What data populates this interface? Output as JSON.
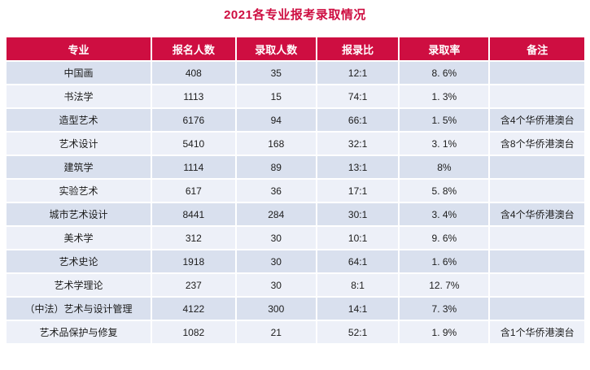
{
  "page": {
    "title": "2021各专业报考录取情况"
  },
  "colors": {
    "accent_red": "#ce0e41",
    "header_bg": "#ce0e41",
    "header_text": "#ffffff",
    "row_bg_odd": "#d9e0ee",
    "row_bg_even": "#edf0f8",
    "body_text": "#1c1c1c",
    "page_bg": "#ffffff"
  },
  "chart_data": {
    "type": "table",
    "title": "2021各专业报考录取情况",
    "columns": [
      {
        "key": "major",
        "label": "专业",
        "width": "25.3%"
      },
      {
        "key": "applicants",
        "label": "报名人数",
        "width": "14.5%"
      },
      {
        "key": "admitted",
        "label": "录取人数",
        "width": "13.9%"
      },
      {
        "key": "ratio",
        "label": "报录比",
        "width": "14.2%"
      },
      {
        "key": "rate",
        "label": "录取率",
        "width": "15.6%"
      },
      {
        "key": "remark",
        "label": "备注",
        "width": "16.5%"
      }
    ],
    "rows": [
      {
        "major": "中国画",
        "applicants": "408",
        "admitted": "35",
        "ratio": "12:1",
        "rate": "8. 6%",
        "remark": ""
      },
      {
        "major": "书法学",
        "applicants": "1113",
        "admitted": "15",
        "ratio": "74:1",
        "rate": "1. 3%",
        "remark": ""
      },
      {
        "major": "造型艺术",
        "applicants": "6176",
        "admitted": "94",
        "ratio": "66:1",
        "rate": "1. 5%",
        "remark": "含4个华侨港澳台"
      },
      {
        "major": "艺术设计",
        "applicants": "5410",
        "admitted": "168",
        "ratio": "32:1",
        "rate": "3. 1%",
        "remark": "含8个华侨港澳台"
      },
      {
        "major": "建筑学",
        "applicants": "1114",
        "admitted": "89",
        "ratio": "13:1",
        "rate": "8%",
        "remark": ""
      },
      {
        "major": "实验艺术",
        "applicants": "617",
        "admitted": "36",
        "ratio": "17:1",
        "rate": "5. 8%",
        "remark": ""
      },
      {
        "major": "城市艺术设计",
        "applicants": "8441",
        "admitted": "284",
        "ratio": "30:1",
        "rate": "3. 4%",
        "remark": "含4个华侨港澳台"
      },
      {
        "major": "美术学",
        "applicants": "312",
        "admitted": "30",
        "ratio": "10:1",
        "rate": "9. 6%",
        "remark": ""
      },
      {
        "major": "艺术史论",
        "applicants": "1918",
        "admitted": "30",
        "ratio": "64:1",
        "rate": "1. 6%",
        "remark": ""
      },
      {
        "major": "艺术学理论",
        "applicants": "237",
        "admitted": "30",
        "ratio": "8:1",
        "rate": "12. 7%",
        "remark": ""
      },
      {
        "major": "（中法）艺术与设计管理",
        "applicants": "4122",
        "admitted": "300",
        "ratio": "14:1",
        "rate": "7. 3%",
        "remark": ""
      },
      {
        "major": "艺术品保护与修复",
        "applicants": "1082",
        "admitted": "21",
        "ratio": "52:1",
        "rate": "1. 9%",
        "remark": "含1个华侨港澳台"
      }
    ]
  }
}
